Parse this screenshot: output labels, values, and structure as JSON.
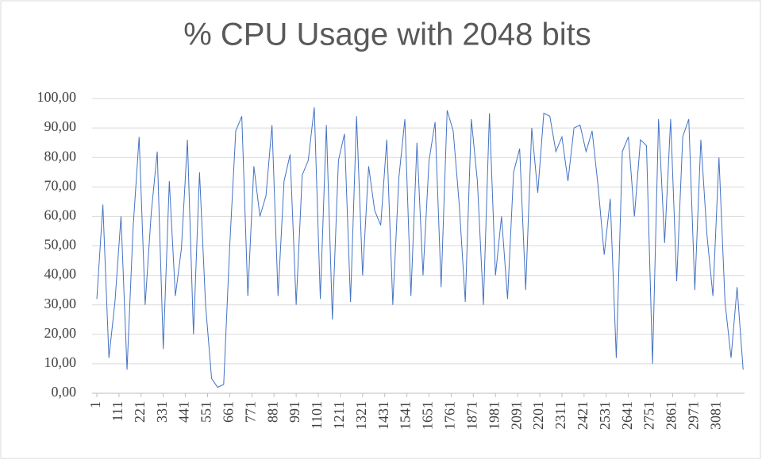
{
  "chart_data": {
    "type": "line",
    "title": "% CPU Usage with 2048 bits",
    "x": [
      1,
      31,
      61,
      91,
      121,
      151,
      181,
      211,
      241,
      271,
      301,
      331,
      361,
      391,
      421,
      451,
      481,
      511,
      541,
      571,
      601,
      631,
      661,
      691,
      721,
      751,
      781,
      811,
      841,
      871,
      901,
      931,
      961,
      991,
      1021,
      1051,
      1081,
      1111,
      1141,
      1171,
      1201,
      1231,
      1261,
      1291,
      1321,
      1351,
      1381,
      1411,
      1441,
      1471,
      1501,
      1531,
      1561,
      1591,
      1621,
      1651,
      1681,
      1711,
      1741,
      1771,
      1801,
      1831,
      1861,
      1891,
      1921,
      1951,
      1981,
      2011,
      2041,
      2071,
      2101,
      2131,
      2161,
      2191,
      2221,
      2251,
      2281,
      2311,
      2341,
      2371,
      2401,
      2431,
      2461,
      2491,
      2521,
      2551,
      2581,
      2611,
      2641,
      2671,
      2701,
      2731,
      2761,
      2791,
      2821,
      2851,
      2881,
      2911,
      2941,
      2971,
      3001,
      3031,
      3061,
      3091,
      3121,
      3151,
      3181,
      3211
    ],
    "series": [
      {
        "name": "% CPU Usage",
        "color": "#4472c4",
        "values": [
          32,
          64,
          12,
          31,
          60,
          8,
          56,
          87,
          30,
          61,
          82,
          15,
          72,
          33,
          49,
          86,
          20,
          75,
          30,
          5,
          2,
          3,
          50,
          89,
          94,
          33,
          77,
          60,
          67,
          91,
          33,
          72,
          81,
          30,
          74,
          79,
          97,
          32,
          91,
          25,
          79,
          88,
          31,
          94,
          40,
          77,
          62,
          57,
          86,
          30,
          73,
          93,
          33,
          85,
          40,
          79,
          92,
          36,
          96,
          89,
          64,
          31,
          93,
          72,
          30,
          95,
          40,
          60,
          32,
          75,
          83,
          35,
          90,
          68,
          95,
          94,
          82,
          87,
          72,
          90,
          91,
          82,
          89,
          70,
          47,
          66,
          12,
          82,
          87,
          60,
          86,
          84,
          10,
          93,
          51,
          93,
          38,
          87,
          93,
          35,
          86,
          54,
          33,
          80,
          31,
          12,
          36,
          8
        ]
      }
    ],
    "xlim": [
      1,
      3218
    ],
    "xticks": [
      1,
      111,
      221,
      331,
      441,
      551,
      661,
      771,
      881,
      991,
      1101,
      1211,
      1321,
      1431,
      1541,
      1651,
      1761,
      1871,
      1981,
      2091,
      2201,
      2311,
      2421,
      2531,
      2641,
      2751,
      2861,
      2971,
      3081
    ],
    "ylim": [
      0,
      100
    ],
    "yticks": [
      {
        "value": 0,
        "label": "0,00"
      },
      {
        "value": 10,
        "label": "10,00"
      },
      {
        "value": 20,
        "label": "20,00"
      },
      {
        "value": 30,
        "label": "30,00"
      },
      {
        "value": 40,
        "label": "40,00"
      },
      {
        "value": 50,
        "label": "50,00"
      },
      {
        "value": 60,
        "label": "60,00"
      },
      {
        "value": 70,
        "label": "70,00"
      },
      {
        "value": 80,
        "label": "80,00"
      },
      {
        "value": 90,
        "label": "90,00"
      },
      {
        "value": 100,
        "label": "100,00"
      }
    ],
    "grid": true
  }
}
